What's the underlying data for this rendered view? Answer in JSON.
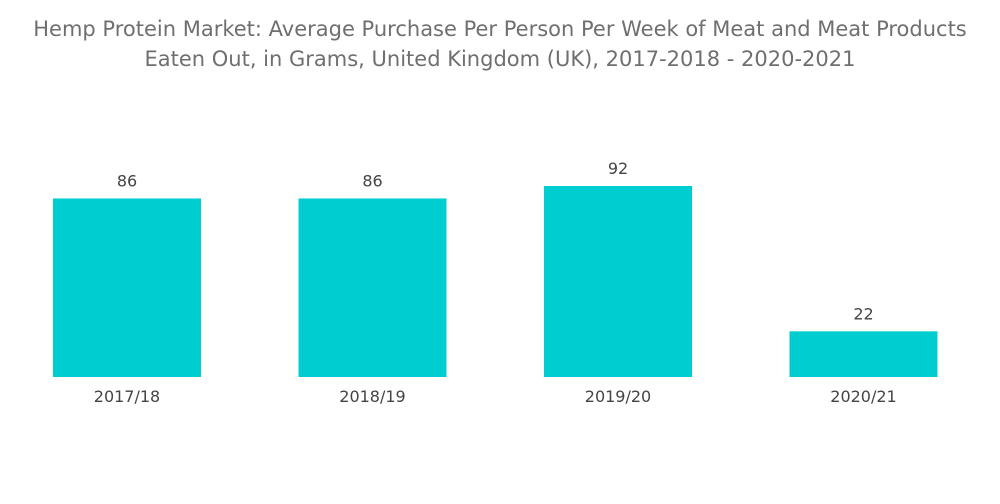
{
  "title_line1": "Hemp Protein Market: Average Purchase Per Person Per Week of Meat and Meat Products",
  "title_line2": "Eaten Out, in Grams, United Kingdom (UK), 2017-2018 - 2020-2021",
  "chart_data": {
    "type": "bar",
    "title": "Hemp Protein Market: Average Purchase Per Person Per Week of Meat and Meat Products Eaten Out, in Grams, United Kingdom (UK), 2017-2018 - 2020-2021",
    "categories": [
      "2017/18",
      "2018/19",
      "2019/20",
      "2020/21"
    ],
    "values": [
      86,
      86,
      92,
      22
    ],
    "xlabel": "",
    "ylabel": "",
    "ylim": [
      0,
      92
    ],
    "grid": false,
    "legend": "none",
    "bar_color": "#00cdd0",
    "data_labels": true
  }
}
